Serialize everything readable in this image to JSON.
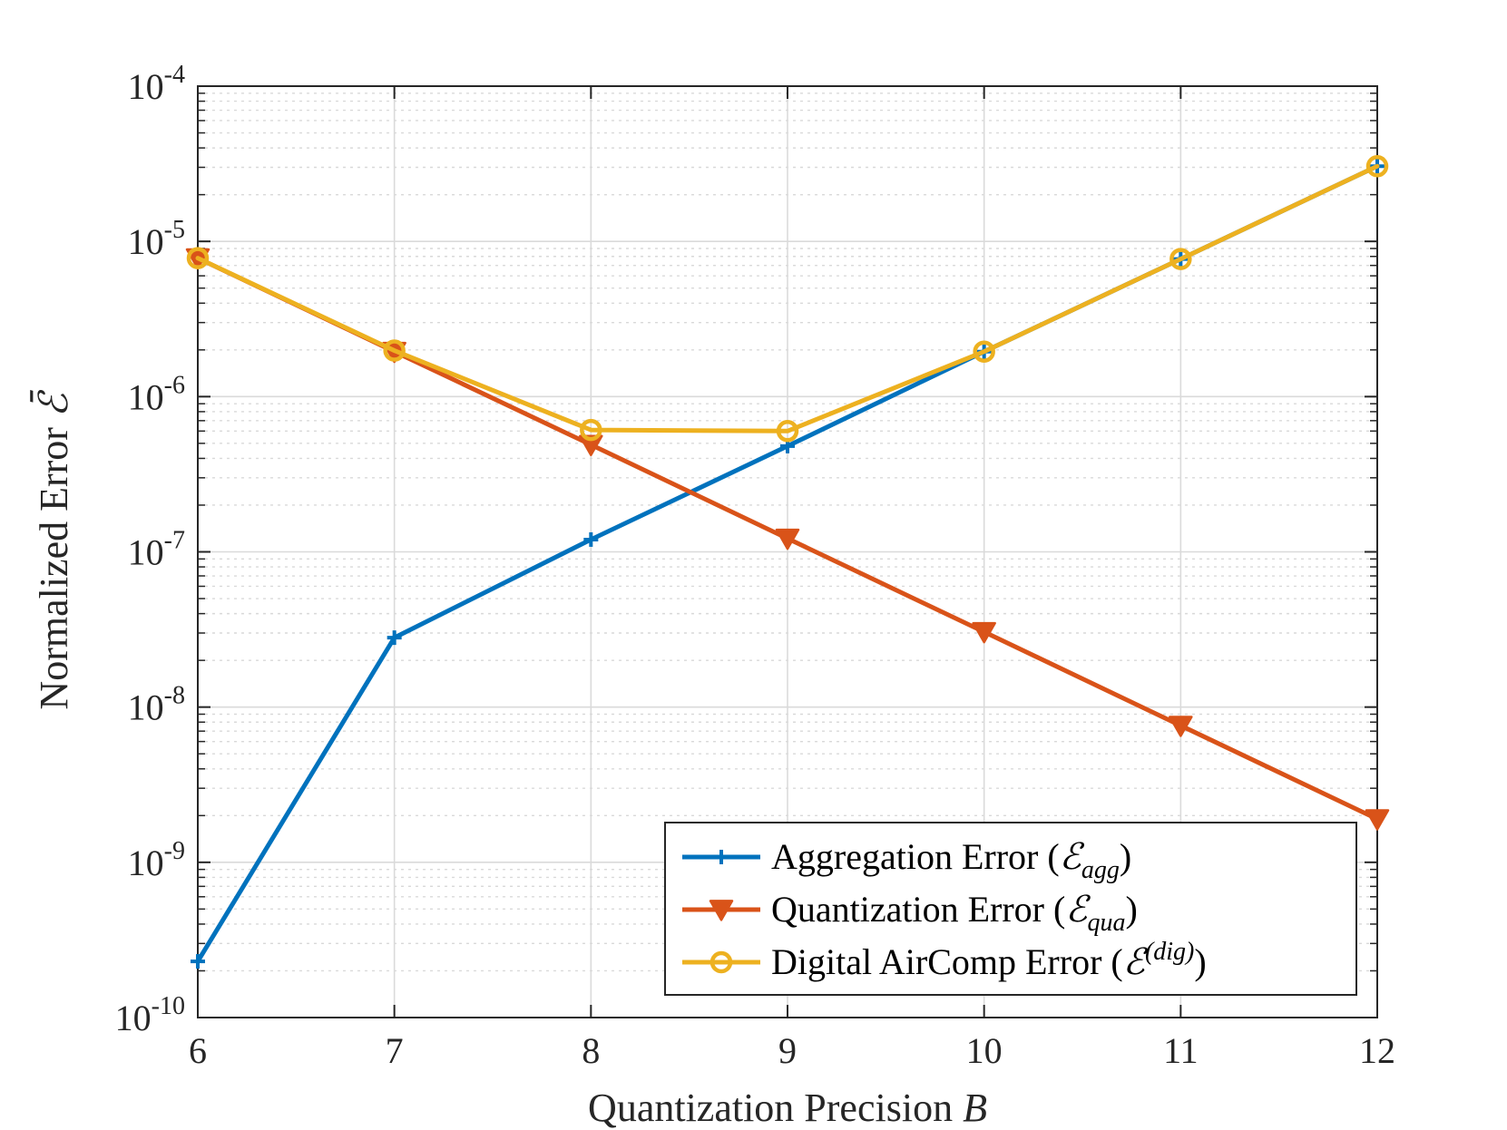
{
  "chart_data": {
    "type": "line",
    "xlabel": "Quantization Precision",
    "xlabel_var": "B",
    "ylabel": "Normalized Error",
    "ylabel_var": "ℰ̄",
    "x": [
      6,
      7,
      8,
      9,
      10,
      11,
      12
    ],
    "xlim": [
      6,
      12
    ],
    "ylim": [
      1e-10,
      0.0001
    ],
    "yscale": "log",
    "grid": true,
    "minor_grid": true,
    "legend_position": "bottom-right",
    "x_ticks": [
      "6",
      "7",
      "8",
      "9",
      "10",
      "11",
      "12"
    ],
    "y_ticks": [
      {
        "base": "10",
        "exp": "-10",
        "value": 1e-10
      },
      {
        "base": "10",
        "exp": "-9",
        "value": 1e-09
      },
      {
        "base": "10",
        "exp": "-8",
        "value": 1e-08
      },
      {
        "base": "10",
        "exp": "-7",
        "value": 1e-07
      },
      {
        "base": "10",
        "exp": "-6",
        "value": 1e-06
      },
      {
        "base": "10",
        "exp": "-5",
        "value": 1e-05
      },
      {
        "base": "10",
        "exp": "-4",
        "value": 0.0001
      }
    ],
    "series": [
      {
        "name": "Aggregation Error",
        "symbol": "ℰ",
        "sub": "agg",
        "sup": "",
        "color": "#0072BD",
        "marker": "plus",
        "values": [
          2.3e-10,
          2.8e-08,
          1.2e-07,
          4.8e-07,
          1.95e-06,
          7.7e-06,
          3.05e-05
        ]
      },
      {
        "name": "Quantization Error",
        "symbol": "ℰ",
        "sub": "qua",
        "sup": "",
        "color": "#D95319",
        "marker": "triangle-down",
        "values": [
          7.8e-06,
          1.95e-06,
          4.9e-07,
          1.22e-07,
          3.05e-08,
          7.6e-09,
          1.9e-09
        ]
      },
      {
        "name": "Digital AirComp Error",
        "symbol": "ℰ",
        "sub": "",
        "sup": "(dig)",
        "color": "#EDB120",
        "marker": "circle",
        "values": [
          7.8e-06,
          1.98e-06,
          6.1e-07,
          6e-07,
          1.95e-06,
          7.7e-06,
          3.05e-05
        ]
      }
    ]
  }
}
